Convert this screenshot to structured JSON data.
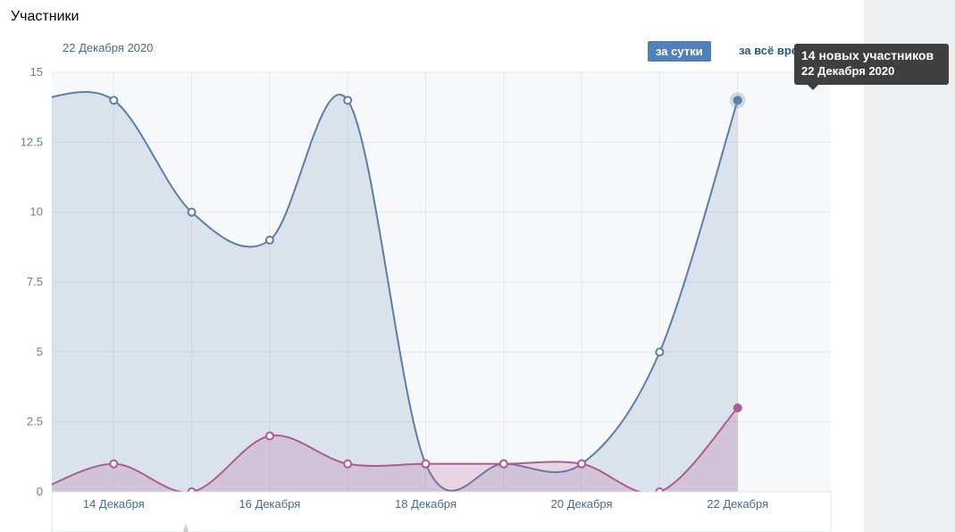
{
  "header": {
    "title": "Участники"
  },
  "controls": {
    "selected_date": "22 Декабря 2020",
    "tab_day": "за сутки",
    "tab_all": "за всё время"
  },
  "tooltip": {
    "line1": "14 новых участников",
    "line2": "22 Декабря 2020"
  },
  "chart_data": {
    "type": "area",
    "x": [
      "13 Декабря",
      "14 Декабря",
      "15 Декабря",
      "16 Декабря",
      "17 Декабря",
      "18 Декабря",
      "19 Декабря",
      "20 Декабря",
      "21 Декабря",
      "22 Декабря"
    ],
    "x_tick_labels": [
      "14 Декабря",
      "16 Декабря",
      "18 Декабря",
      "20 Декабря",
      "22 Декабря"
    ],
    "y_ticks": [
      "0",
      "2.5",
      "5",
      "7.5",
      "10",
      "12.5",
      "15"
    ],
    "ylim": [
      0,
      15
    ],
    "grid": true,
    "series": [
      {
        "values": [
          14,
          14,
          10,
          9,
          14,
          1,
          1,
          1,
          5,
          14
        ],
        "color": "#5b7fa6"
      },
      {
        "values": [
          0,
          1,
          0,
          2,
          1,
          1,
          1,
          1,
          0,
          3
        ],
        "color": "#b05a94"
      }
    ],
    "highlight_index": 9
  }
}
